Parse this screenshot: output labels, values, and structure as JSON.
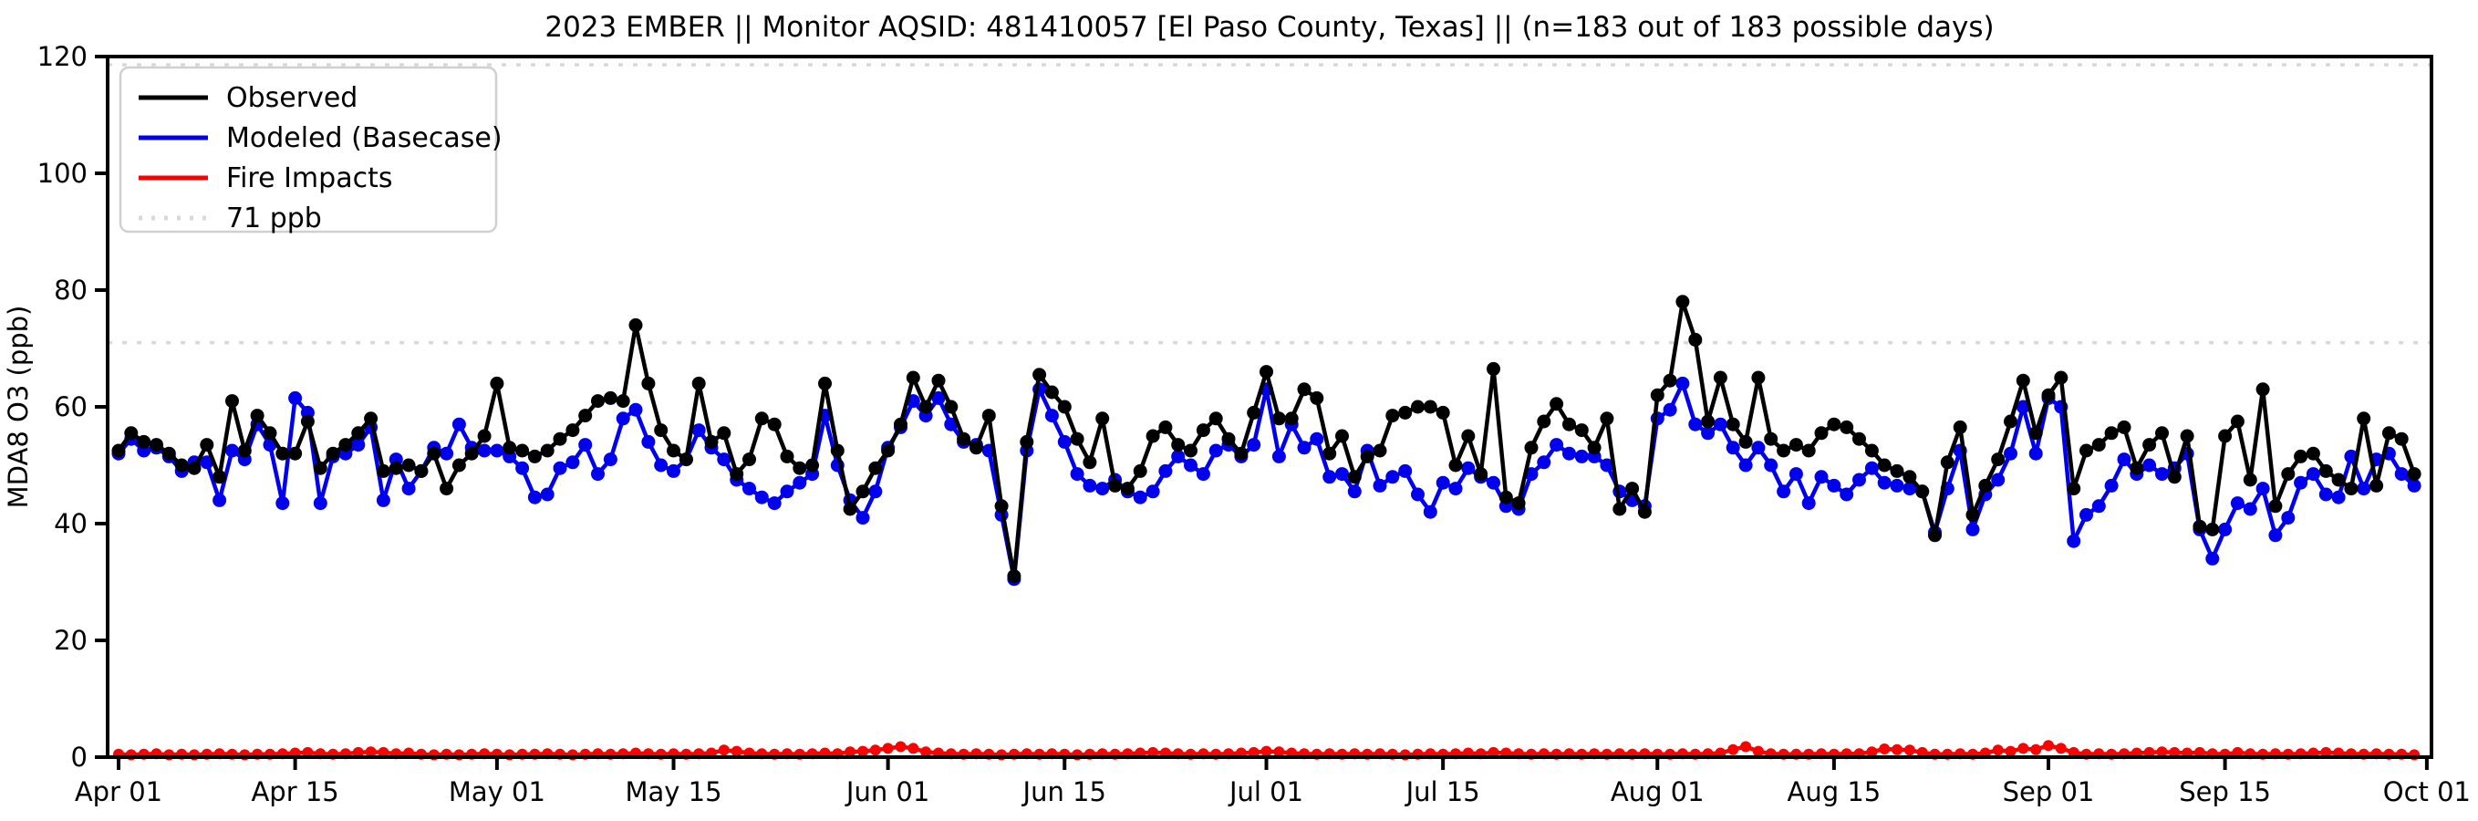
{
  "title": "2023 EMBER || Monitor AQSID: 481410057 [El Paso County, Texas] || (n=183 out of 183 possible days)",
  "y_axis": {
    "label": "MDA8 O3 (ppb)",
    "ticks": [
      0,
      20,
      40,
      60,
      80,
      100,
      120
    ],
    "range": [
      0,
      120
    ]
  },
  "x_axis": {
    "tick_labels": [
      "Apr 01",
      "Apr 15",
      "May 01",
      "May 15",
      "Jun 01",
      "Jun 15",
      "Jul 01",
      "Jul 15",
      "Aug 01",
      "Aug 15",
      "Sep 01",
      "Sep 15",
      "Oct 01"
    ],
    "tick_days": [
      0,
      14,
      30,
      44,
      61,
      75,
      91,
      105,
      122,
      136,
      153,
      167,
      183
    ]
  },
  "legend": {
    "items": [
      {
        "label": "Observed",
        "style": "solid",
        "color": "#000000"
      },
      {
        "label": "Modeled (Basecase)",
        "style": "solid",
        "color": "#0000ee"
      },
      {
        "label": "Fire Impacts",
        "style": "solid",
        "color": "#ff0000"
      },
      {
        "label": "71 ppb",
        "style": "dotted",
        "color": "#d9d9d9"
      }
    ]
  },
  "colors": {
    "observed": "#000000",
    "modeled": "#0000ee",
    "fire": "#ff0000",
    "threshold": "#d9d9d9",
    "axis": "#000000",
    "background": "#ffffff"
  },
  "chart_data": {
    "type": "line",
    "title": "2023 EMBER || Monitor AQSID: 481410057 [El Paso County, Texas] || (n=183 out of 183 possible days)",
    "xlabel": "",
    "ylabel": "MDA8 O3 (ppb)",
    "ylim": [
      0,
      120
    ],
    "x_is_daily_dates": true,
    "x_start": "2023-04-01",
    "x_end": "2023-09-30",
    "n_days": 183,
    "grid": false,
    "legend_position": "upper left",
    "threshold": {
      "label": "71 ppb",
      "value": 71
    },
    "series": [
      {
        "name": "Observed",
        "color": "#000000",
        "values": [
          52.5,
          55.5,
          54,
          53.5,
          52,
          50,
          49.5,
          53.5,
          48,
          61,
          52.5,
          58.5,
          55.5,
          52,
          52,
          57.5,
          49.5,
          52,
          53.5,
          55.5,
          58,
          49,
          49.5,
          50,
          49,
          52,
          46,
          50,
          52,
          55,
          64,
          53,
          52.5,
          51.5,
          52.5,
          54.5,
          56,
          58.5,
          61,
          61.5,
          61,
          74,
          64,
          56,
          52.5,
          51,
          64,
          54,
          55.5,
          48.5,
          51,
          58,
          57,
          51.5,
          49.5,
          50,
          64,
          52.5,
          42.5,
          45.5,
          49.5,
          52.5,
          57,
          65,
          60,
          64.5,
          60,
          54.5,
          53,
          58.5,
          43,
          31,
          54,
          65.5,
          62.5,
          60,
          54.5,
          50.5,
          58,
          46.5,
          46,
          49,
          55,
          56.5,
          53.5,
          52.5,
          56,
          58,
          54.5,
          52,
          59,
          66,
          58,
          58,
          63,
          61.5,
          52,
          55,
          48,
          51.5,
          52.5,
          58.5,
          59,
          60,
          60,
          59,
          50,
          55,
          48.5,
          66.5,
          44.5,
          43.5,
          53,
          57.5,
          60.5,
          57,
          56,
          53,
          58,
          42.5,
          46,
          42,
          62,
          64.5,
          78,
          71.5,
          57.5,
          65,
          57,
          54,
          65,
          54.5,
          52.5,
          53.5,
          52.5,
          55.5,
          57,
          56.5,
          54.5,
          52.5,
          50,
          49,
          48,
          45.5,
          38,
          50.5,
          56.5,
          41.5,
          46.5,
          51,
          57.5,
          64.5,
          55.5,
          62,
          65,
          46,
          52.5,
          53.5,
          55.5,
          56.5,
          49.5,
          53.5,
          55.5,
          48,
          55,
          39.5,
          39,
          55,
          57.5,
          47.5,
          63,
          43,
          48.5,
          51.5,
          52,
          49,
          47.5,
          46,
          58,
          46.5,
          55.5,
          54.5,
          48.5
        ]
      },
      {
        "name": "Modeled (Basecase)",
        "color": "#0000ee",
        "values": [
          52,
          54.5,
          52.5,
          53,
          51.5,
          49,
          50.5,
          50.5,
          44,
          52.5,
          51,
          57,
          53.5,
          43.5,
          61.5,
          59,
          43.5,
          51.5,
          52,
          53.5,
          56.5,
          44,
          51,
          46,
          49,
          53,
          52,
          57,
          53,
          52.5,
          52.5,
          51.5,
          49.5,
          44.5,
          45,
          49.5,
          50.5,
          53.5,
          48.5,
          51,
          58,
          59.5,
          54,
          50,
          49,
          51,
          56,
          53,
          51,
          47.5,
          46,
          44.5,
          43.5,
          45.5,
          47,
          48.5,
          58.5,
          50,
          44,
          41,
          45.5,
          53,
          56.5,
          61,
          58.5,
          61.5,
          57,
          54,
          53.5,
          52.5,
          41.5,
          30.5,
          52.5,
          63,
          58.5,
          54,
          48.5,
          46.5,
          46,
          47.5,
          45.5,
          44.5,
          45.5,
          49,
          51.5,
          50,
          48.5,
          52.5,
          53.5,
          51.5,
          53.5,
          63,
          51.5,
          57,
          53,
          54.5,
          48,
          48.5,
          45.5,
          52.5,
          46.5,
          48,
          49,
          45,
          42,
          47,
          46,
          49.5,
          48,
          47,
          43,
          42.5,
          48.5,
          50.5,
          53.5,
          52,
          51.5,
          51.5,
          50,
          45.5,
          44,
          43,
          58,
          59.5,
          64,
          57,
          55.5,
          57,
          53,
          50,
          53,
          50,
          45.5,
          48.5,
          43.5,
          48,
          46.5,
          45,
          47.5,
          49.5,
          47,
          46.5,
          46,
          45.5,
          38.5,
          46,
          52.5,
          39,
          45,
          47.5,
          52,
          60,
          52,
          61.5,
          60,
          37,
          41.5,
          43,
          46.5,
          51,
          48.5,
          50,
          48.5,
          49.5,
          52,
          39,
          34,
          39,
          43.5,
          42.5,
          46,
          38,
          41,
          47,
          48.5,
          45,
          44.5,
          51.5,
          46,
          51,
          52,
          48.5,
          46.5
        ]
      },
      {
        "name": "Fire Impacts",
        "color": "#ff0000",
        "values": [
          0.5,
          0.4,
          0.5,
          0.6,
          0.4,
          0.5,
          0.4,
          0.5,
          0.6,
          0.5,
          0.4,
          0.5,
          0.5,
          0.6,
          0.7,
          0.8,
          0.6,
          0.5,
          0.6,
          0.8,
          0.9,
          0.8,
          0.6,
          0.7,
          0.5,
          0.4,
          0.5,
          0.4,
          0.5,
          0.6,
          0.5,
          0.4,
          0.5,
          0.5,
          0.6,
          0.5,
          0.4,
          0.5,
          0.6,
          0.5,
          0.6,
          0.7,
          0.6,
          0.5,
          0.6,
          0.5,
          0.6,
          0.7,
          1.2,
          1.0,
          0.7,
          0.6,
          0.5,
          0.6,
          0.5,
          0.6,
          0.7,
          0.6,
          0.9,
          1.0,
          1.2,
          1.5,
          1.8,
          1.5,
          0.9,
          0.7,
          0.6,
          0.5,
          0.6,
          0.5,
          0.4,
          0.5,
          0.6,
          0.5,
          0.6,
          0.5,
          0.4,
          0.5,
          0.6,
          0.5,
          0.6,
          0.7,
          0.8,
          0.7,
          0.6,
          0.5,
          0.6,
          0.5,
          0.6,
          0.7,
          0.8,
          1.0,
          0.9,
          0.7,
          0.6,
          0.5,
          0.6,
          0.5,
          0.6,
          0.5,
          0.6,
          0.5,
          0.4,
          0.5,
          0.6,
          0.5,
          0.6,
          0.7,
          0.6,
          0.8,
          0.7,
          0.6,
          0.5,
          0.6,
          0.5,
          0.6,
          0.5,
          0.6,
          0.5,
          0.6,
          0.5,
          0.6,
          0.5,
          0.5,
          0.6,
          0.5,
          0.6,
          0.7,
          1.3,
          1.8,
          1.0,
          0.6,
          0.5,
          0.5,
          0.5,
          0.6,
          0.5,
          0.6,
          0.6,
          0.9,
          1.4,
          1.3,
          1.2,
          0.8,
          0.5,
          0.5,
          0.6,
          0.5,
          0.7,
          1.2,
          1.0,
          1.5,
          1.3,
          2.0,
          1.5,
          0.8,
          0.5,
          0.6,
          0.5,
          0.6,
          0.7,
          0.8,
          0.9,
          0.8,
          0.7,
          0.8,
          0.6,
          0.5,
          0.8,
          0.6,
          0.5,
          0.6,
          0.5,
          0.6,
          0.7,
          0.8,
          0.7,
          0.6,
          0.5,
          0.6,
          0.5,
          0.5,
          0.4
        ]
      }
    ]
  }
}
